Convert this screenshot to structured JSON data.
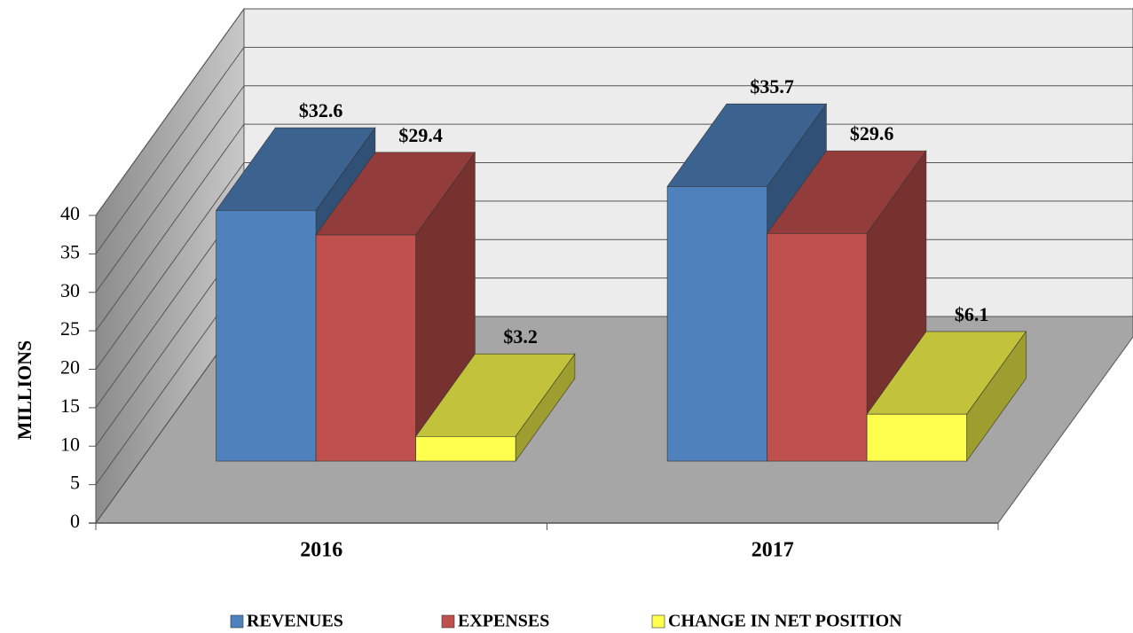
{
  "chart_data": {
    "type": "bar3d",
    "ylabel": "MILLIONS",
    "categories": [
      "2016",
      "2017"
    ],
    "series": [
      {
        "name": "REVENUES",
        "color": "#4f81bd",
        "values": [
          32.6,
          35.7
        ],
        "value_labels": [
          "$32.6",
          "$35.7"
        ]
      },
      {
        "name": "EXPENSES",
        "color": "#c0504d",
        "values": [
          29.4,
          29.6
        ],
        "value_labels": [
          "$29.4",
          "$29.6"
        ]
      },
      {
        "name": "CHANGE IN NET POSITION",
        "color": "#ffff4d",
        "values": [
          3.2,
          6.1
        ],
        "value_labels": [
          "$3.2",
          "$6.1"
        ]
      }
    ],
    "ylim": [
      0,
      40
    ],
    "yticks": [
      0,
      5,
      10,
      15,
      20,
      25,
      30,
      35,
      40
    ],
    "grid": true,
    "legend": "bottom"
  }
}
